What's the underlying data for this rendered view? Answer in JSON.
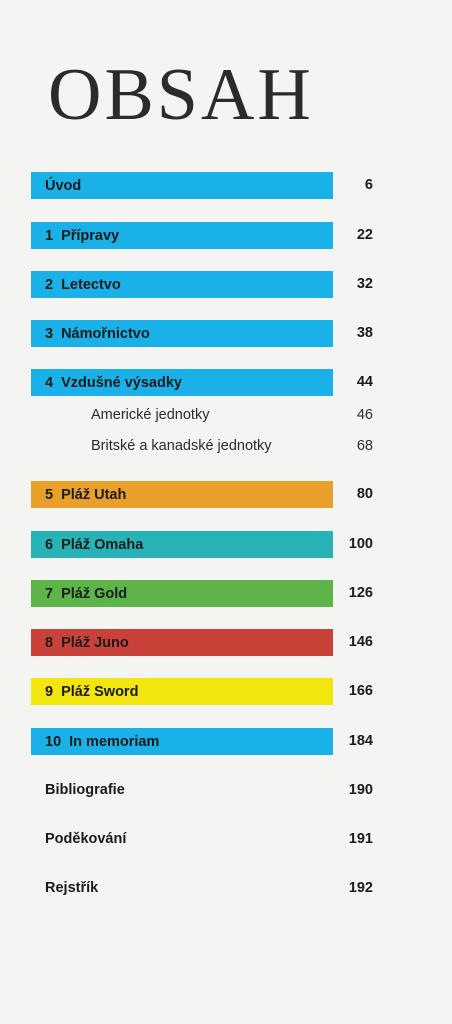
{
  "title": "OBSAH",
  "colors": {
    "blue": "#1ab0e8",
    "orange": "#e9a02a",
    "teal": "#27b3b6",
    "green": "#5db449",
    "red": "#c9423a",
    "yellow": "#f3e60f",
    "background": "#f4f5f2"
  },
  "entries": [
    {
      "num": "",
      "label": "Úvod",
      "page": "6",
      "color": "blue"
    },
    {
      "num": "1",
      "label": "Přípravy",
      "page": "22",
      "color": "blue"
    },
    {
      "num": "2",
      "label": "Letectvo",
      "page": "32",
      "color": "blue"
    },
    {
      "num": "3",
      "label": "Námořnictvo",
      "page": "38",
      "color": "blue"
    },
    {
      "num": "4",
      "label": "Vzdušné výsadky",
      "page": "44",
      "color": "blue"
    },
    {
      "num": "5",
      "label": "Pláž Utah",
      "page": "80",
      "color": "orange"
    },
    {
      "num": "6",
      "label": "Pláž Omaha",
      "page": "100",
      "color": "teal"
    },
    {
      "num": "7",
      "label": "Pláž Gold",
      "page": "126",
      "color": "green"
    },
    {
      "num": "8",
      "label": "Pláž Juno",
      "page": "146",
      "color": "red"
    },
    {
      "num": "9",
      "label": "Pláž Sword",
      "page": "166",
      "color": "yellow"
    },
    {
      "num": "10",
      "label": "In memoriam",
      "page": "184",
      "color": "blue"
    }
  ],
  "subentries": [
    {
      "label": "Americké jednotky",
      "page": "46"
    },
    {
      "label": "Britské a kanadské jednotky",
      "page": "68"
    }
  ],
  "extras": [
    {
      "label": "Bibliografie",
      "page": "190"
    },
    {
      "label": "Poděkování",
      "page": "191"
    },
    {
      "label": "Rejstřík",
      "page": "192"
    }
  ]
}
